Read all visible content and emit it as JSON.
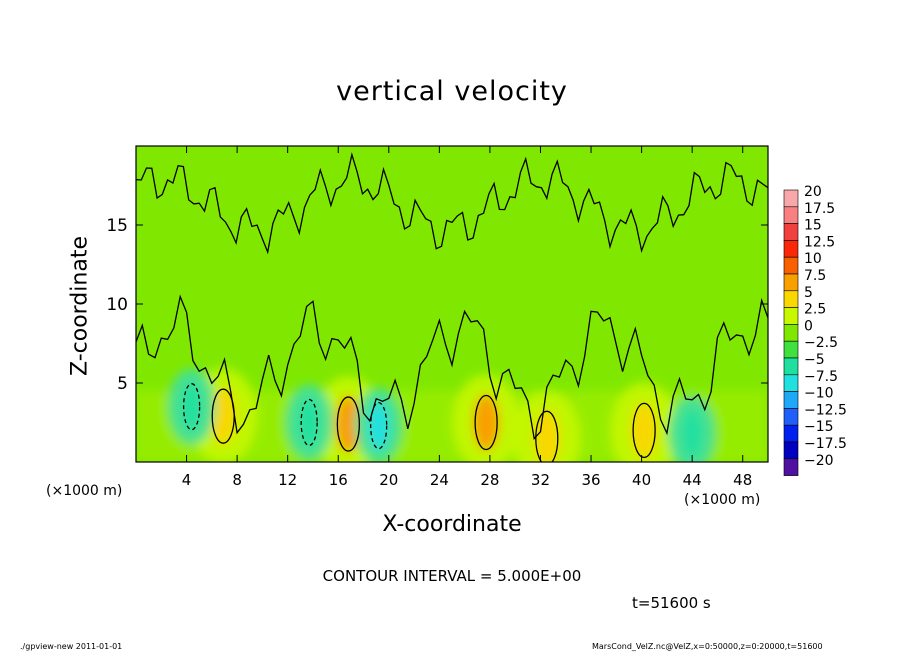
{
  "chart_data": {
    "type": "heatmap",
    "title": "vertical velocity",
    "xlabel": "X-coordinate",
    "ylabel": "Z-coordinate",
    "x_unit": "(×1000 m)",
    "xlim": [
      0,
      50
    ],
    "ylim": [
      0,
      20
    ],
    "x_ticks": [
      4,
      8,
      12,
      16,
      20,
      24,
      28,
      32,
      36,
      40,
      44,
      48
    ],
    "y_ticks": [
      5,
      10,
      15
    ],
    "colorbar": {
      "levels": [
        20,
        17.5,
        15,
        12.5,
        10,
        7.5,
        5,
        2.5,
        0,
        -2.5,
        -5,
        -7.5,
        -10,
        -12.5,
        -15,
        -17.5,
        -20
      ],
      "level_labels": [
        "20",
        "17.5",
        "15",
        "12.5",
        "10",
        "7.5",
        "5",
        "2.5",
        "0",
        "−2.5",
        "−5",
        "−7.5",
        "−10",
        "−12.5",
        "−15",
        "−17.5",
        "−20"
      ],
      "colors": [
        "#f8a8a8",
        "#f88080",
        "#f04040",
        "#f82808",
        "#f86000",
        "#f8a000",
        "#f8d800",
        "#c8f800",
        "#80e800",
        "#40e040",
        "#20e0a0",
        "#20e0e0",
        "#20a8f8",
        "#2060f8",
        "#0020f0",
        "#0000c0",
        "#5010a0"
      ]
    },
    "updrafts": [
      {
        "x": 6.9,
        "z": 2.9,
        "w": 5
      },
      {
        "x": 16.8,
        "z": 2.4,
        "w": 8
      },
      {
        "x": 27.7,
        "z": 2.5,
        "w": 7
      },
      {
        "x": 32.5,
        "z": 1.5,
        "w": 4
      },
      {
        "x": 40.2,
        "z": 2.0,
        "w": 5
      }
    ],
    "downdrafts": [
      {
        "x": 4.4,
        "z": 3.5,
        "w": -6
      },
      {
        "x": 13.7,
        "z": 2.5,
        "w": -6
      },
      {
        "x": 19.2,
        "z": 2.3,
        "w": -7
      },
      {
        "x": 44.0,
        "z": 1.8,
        "w": -4
      }
    ],
    "contour_interval": "CONTOUR INTERVAL = 5.000E+00",
    "time": "t=51600 s"
  },
  "footer": {
    "left": "./gpview-new  2011-01-01",
    "right": "MarsCond_VelZ.nc@VelZ,x=0:50000,z=0:20000,t=51600"
  }
}
